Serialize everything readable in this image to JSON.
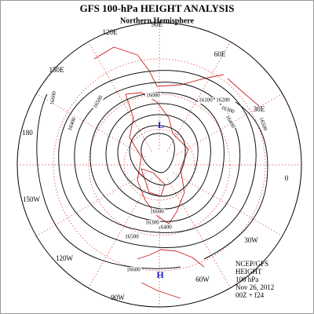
{
  "header": {
    "title": "GFS 100-hPa HEIGHT ANALYSIS",
    "subtitle": "Northern Hemisphere"
  },
  "longitude_labels": [
    "90E",
    "120E",
    "60E",
    "150E",
    "30E",
    "180",
    "0",
    "150W",
    "30W",
    "120W",
    "60W",
    "90W"
  ],
  "contour_labels": [
    "16600",
    "16500",
    "16000",
    "16100",
    "16200",
    "16300",
    "16400",
    "16500",
    "16400",
    "16600",
    "16500",
    "16400",
    "16300",
    "16600"
  ],
  "centers": [
    "L",
    "H"
  ],
  "info": [
    "NCEP/GFS",
    "HEIGHT",
    "100 hPa",
    "Nov 26, 2012",
    "00Z + f24"
  ]
}
